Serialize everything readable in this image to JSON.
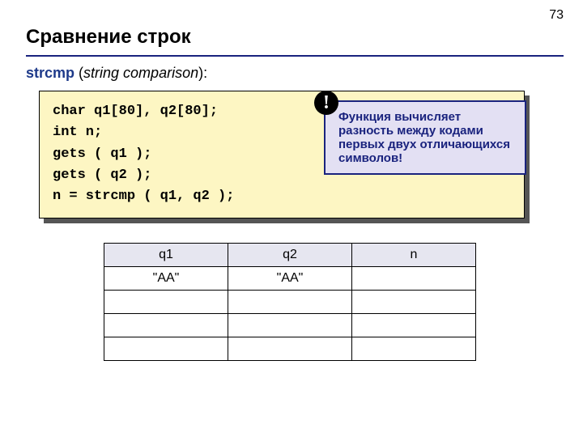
{
  "page_number": "73",
  "title": "Сравнение строк",
  "subline": {
    "fn": "strcmp",
    "open": " (",
    "desc": "string comparison",
    "close": "):"
  },
  "code": {
    "l1": "char q1[80], q2[80];",
    "l2": "int n;",
    "l3": "gets ( q1 );",
    "l4": "gets ( q2 );",
    "l5": "n = strcmp ( q1, q2 );"
  },
  "callout": {
    "bang": "!",
    "text": " Функция вычисляет разность между кодами первых двух отличающихся символов!"
  },
  "table": {
    "headers": [
      "q1",
      "q2",
      "n"
    ],
    "rows": [
      [
        "\"AA\"",
        "\"AA\"",
        ""
      ],
      [
        "",
        "",
        ""
      ],
      [
        "",
        "",
        ""
      ],
      [
        "",
        "",
        ""
      ]
    ],
    "header_bg": "#e6e6f0",
    "border_color": "#000000"
  },
  "colors": {
    "code_bg": "#fdf6c3",
    "callout_bg": "#e3e0f3",
    "callout_border": "#1a237e",
    "underline": "#1a237e"
  }
}
